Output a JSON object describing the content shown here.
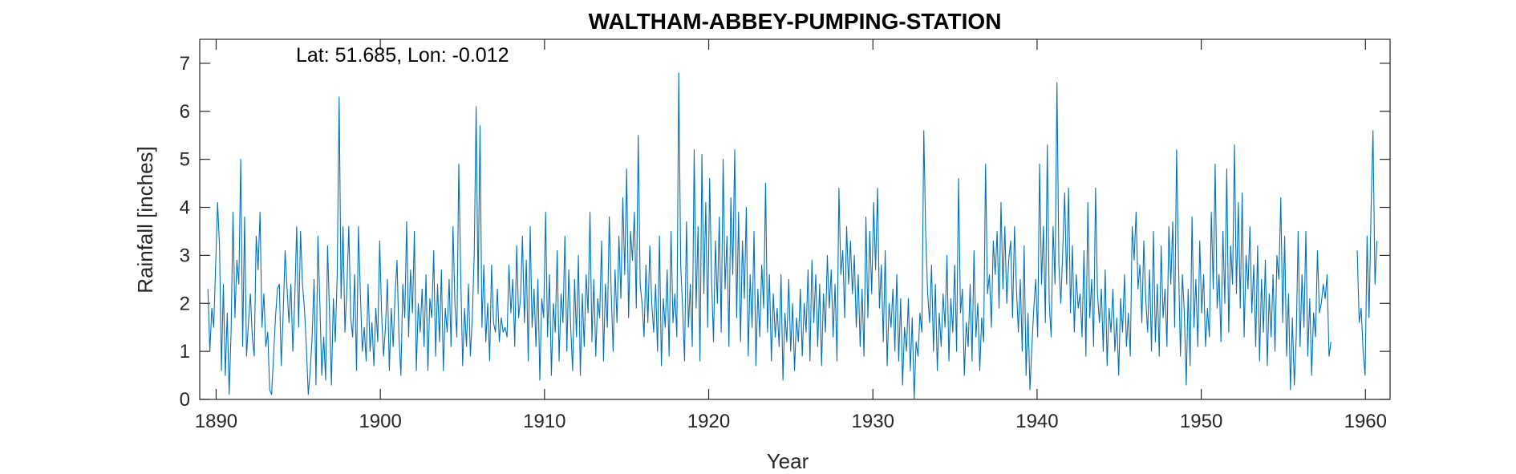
{
  "chart_data": {
    "type": "line",
    "title": "WALTHAM-ABBEY-PUMPING-STATION",
    "annotation": "Lat: 51.685, Lon: -0.012",
    "xlabel": "Year",
    "ylabel": "Rainfall [inches]",
    "xlim": [
      1889,
      1961.5
    ],
    "ylim": [
      0,
      7.5
    ],
    "xticks": [
      1890,
      1900,
      1910,
      1920,
      1930,
      1940,
      1950,
      1960
    ],
    "yticks": [
      0,
      1,
      2,
      3,
      4,
      5,
      6,
      7
    ],
    "grid": false,
    "series_color": "#0072BD",
    "series": [
      {
        "segments": [
          {
            "start_year": 1889.5,
            "end_year": 1957.9,
            "values": [
              2.3,
              1.0,
              1.9,
              1.5,
              2.8,
              4.1,
              3.2,
              0.6,
              2.4,
              0.5,
              1.8,
              0.1,
              1.4,
              3.9,
              1.7,
              2.9,
              2.4,
              5.0,
              1.1,
              3.8,
              0.9,
              1.6,
              2.2,
              1.3,
              0.9,
              3.4,
              2.7,
              3.9,
              1.5,
              2.2,
              1.1,
              1.4,
              0.2,
              0.1,
              0.9,
              1.7,
              2.3,
              2.4,
              0.7,
              1.8,
              3.1,
              2.3,
              1.6,
              2.4,
              1.0,
              2.1,
              3.6,
              1.5,
              3.5,
              2.4,
              1.9,
              1.1,
              0.1,
              0.6,
              1.3,
              2.5,
              0.3,
              3.4,
              2.0,
              0.5,
              1.3,
              0.4,
              3.2,
              1.8,
              0.3,
              2.1,
              1.2,
              2.6,
              6.3,
              2.1,
              3.6,
              1.4,
              2.3,
              3.6,
              1.7,
              1.3,
              2.6,
              0.6,
              3.6,
              2.2,
              1.0,
              1.5,
              0.8,
              2.4,
              1.0,
              1.6,
              0.7,
              1.9,
              1.2,
              3.3,
              1.8,
              0.9,
              1.5,
              2.5,
              0.6,
              1.9,
              1.1,
              2.2,
              2.9,
              1.3,
              0.5,
              2.4,
              1.7,
              3.7,
              1.3,
              2.7,
              1.8,
              3.5,
              0.6,
              2.0,
              1.4,
              2.3,
              1.1,
              2.6,
              0.6,
              2.1,
              1.7,
              3.1,
              0.9,
              2.4,
              1.2,
              2.7,
              0.6,
              1.9,
              1.4,
              2.5,
              1.1,
              3.6,
              2.0,
              1.3,
              4.9,
              2.6,
              0.7,
              1.9,
              1.1,
              2.4,
              0.9,
              1.7,
              3.0,
              6.1,
              2.2,
              5.7,
              1.5,
              2.8,
              1.2,
              2.0,
              0.8,
              2.8,
              1.6,
              1.4,
              2.3,
              1.2,
              1.7,
              1.4,
              1.5,
              1.3,
              2.8,
              1.8,
              2.5,
              1.1,
              3.2,
              1.7,
              2.1,
              3.4,
              1.6,
              2.9,
              0.8,
              3.6,
              1.5,
              2.3,
              1.1,
              2.5,
              0.4,
              2.1,
              1.7,
              3.9,
              1.3,
              2.6,
              0.5,
              2.0,
              1.4,
              3.1,
              0.8,
              2.2,
              1.6,
              3.4,
              1.0,
              2.7,
              1.5,
              0.6,
              2.5,
              1.3,
              3.0,
              0.5,
              2.2,
              1.1,
              2.6,
              1.8,
              3.9,
              1.2,
              2.5,
              0.9,
              2.1,
              1.7,
              3.3,
              0.8,
              2.4,
              1.5,
              3.8,
              2.2,
              1.0,
              2.7,
              1.6,
              3.4,
              2.1,
              4.2,
              2.6,
              4.8,
              1.7,
              3.5,
              2.9,
              3.9,
              1.9,
              5.5,
              2.4,
              2.0,
              1.3,
              2.8,
              1.6,
              3.2,
              2.0,
              1.4,
              2.4,
              1.0,
              3.4,
              0.7,
              2.1,
              1.5,
              2.7,
              0.9,
              3.5,
              1.6,
              2.2,
              1.3,
              6.8,
              2.8,
              1.9,
              0.8,
              3.7,
              1.5,
              2.4,
              1.1,
              5.2,
              1.9,
              3.6,
              0.8,
              5.1,
              2.2,
              4.1,
              1.5,
              4.6,
              2.5,
              1.2,
              3.3,
              2.0,
              3.8,
              1.4,
              5.0,
              2.3,
              3.4,
              1.1,
              4.2,
              2.6,
              5.2,
              1.7,
              3.9,
              1.2,
              3.3,
              2.1,
              4.0,
              0.9,
              2.6,
              1.5,
              3.5,
              0.7,
              2.3,
              1.3,
              2.8,
              1.9,
              4.5,
              1.4,
              2.6,
              0.8,
              2.2,
              1.3,
              1.9,
              1.1,
              2.6,
              0.4,
              1.8,
              1.2,
              2.5,
              1.0,
              2.0,
              0.6,
              1.7,
              1.2,
              2.3,
              0.9,
              2.0,
              1.4,
              2.7,
              0.8,
              2.9,
              1.6,
              2.6,
              1.1,
              2.4,
              0.7,
              2.2,
              1.4,
              3.0,
              1.9,
              2.7,
              1.3,
              2.4,
              0.8,
              4.4,
              2.6,
              3.1,
              1.7,
              3.6,
              2.4,
              3.3,
              2.2,
              3.0,
              1.5,
              2.6,
              1.1,
              2.3,
              0.9,
              3.8,
              1.7,
              3.5,
              2.2,
              4.1,
              2.7,
              4.4,
              1.9,
              2.8,
              1.2,
              3.1,
              0.7,
              2.0,
              1.5,
              2.3,
              1.0,
              2.6,
              0.8,
              2.1,
              0.3,
              1.5,
              1.0,
              2.1,
              0.6,
              1.7,
              0.0,
              1.2,
              0.9,
              1.8,
              1.4,
              5.6,
              3.4,
              2.2,
              1.6,
              2.8,
              1.0,
              2.4,
              0.6,
              1.8,
              1.1,
              2.2,
              1.5,
              3.0,
              0.8,
              2.1,
              1.4,
              2.8,
              1.0,
              4.6,
              1.8,
              2.3,
              0.5,
              1.6,
              1.1,
              2.4,
              0.8,
              3.1,
              1.3,
              2.0,
              0.6,
              1.7,
              1.2,
              4.9,
              2.2,
              2.6,
              1.5,
              3.3,
              2.6,
              3.5,
              1.9,
              4.1,
              2.3,
              3.6,
              2.0,
              2.9,
              3.3,
              1.7,
              3.6,
              2.3,
              1.4,
              2.5,
              1.0,
              3.2,
              0.5,
              1.8,
              0.2,
              1.1,
              1.9,
              2.5,
              1.3,
              4.9,
              2.4,
              3.6,
              1.6,
              5.3,
              2.0,
              1.3,
              3.6,
              2.4,
              6.6,
              2.8,
              2.0,
              3.1,
              4.3,
              2.4,
              4.4,
              1.8,
              3.2,
              1.4,
              2.6,
              1.9,
              2.2,
              1.3,
              3.1,
              0.9,
              4.1,
              1.7,
              2.5,
              1.1,
              4.4,
              2.2,
              1.6,
              2.3,
              1.0,
              2.7,
              0.7,
              1.9,
              1.4,
              2.3,
              1.0,
              1.7,
              0.5,
              2.1,
              1.4,
              2.6,
              1.1,
              1.8,
              0.9,
              3.6,
              2.9,
              3.9,
              2.3,
              2.8,
              1.6,
              3.3,
              2.1,
              1.4,
              2.7,
              1.0,
              3.5,
              1.2,
              2.4,
              0.9,
              3.2,
              1.7,
              2.3,
              1.1,
              3.6,
              2.4,
              3.7,
              1.5,
              5.2,
              2.8,
              0.9,
              2.6,
              1.8,
              0.3,
              2.3,
              0.7,
              3.8,
              1.5,
              2.5,
              1.1,
              3.3,
              1.8,
              2.6,
              1.1,
              1.9,
              1.3,
              3.9,
              2.3,
              4.9,
              1.9,
              2.6,
              1.2,
              3.5,
              2.0,
              4.8,
              1.4,
              3.2,
              2.4,
              5.3,
              2.2,
              4.1,
              1.9,
              4.3,
              1.3,
              3.0,
              2.3,
              3.6,
              1.8,
              2.8,
              1.1,
              3.2,
              0.8,
              2.5,
              1.4,
              2.9,
              0.7,
              2.2,
              1.3,
              2.6,
              1.0,
              3.0,
              2.5,
              4.2,
              1.6,
              3.4,
              0.9,
              2.2,
              0.2,
              1.7,
              0.3,
              1.3,
              3.5,
              1.1,
              2.6,
              1.5,
              3.5,
              0.9,
              2.1,
              0.5,
              1.8,
              1.3,
              3.1,
              1.8,
              2.0,
              2.4,
              2.1,
              2.6,
              0.9,
              1.2
            ]
          },
          {
            "start_year": 1959.5,
            "end_year": 1960.7,
            "values": [
              3.1,
              1.6,
              1.9,
              1.0,
              0.5,
              3.4,
              1.7,
              3.9,
              5.6,
              2.4,
              3.3
            ]
          }
        ]
      }
    ]
  }
}
